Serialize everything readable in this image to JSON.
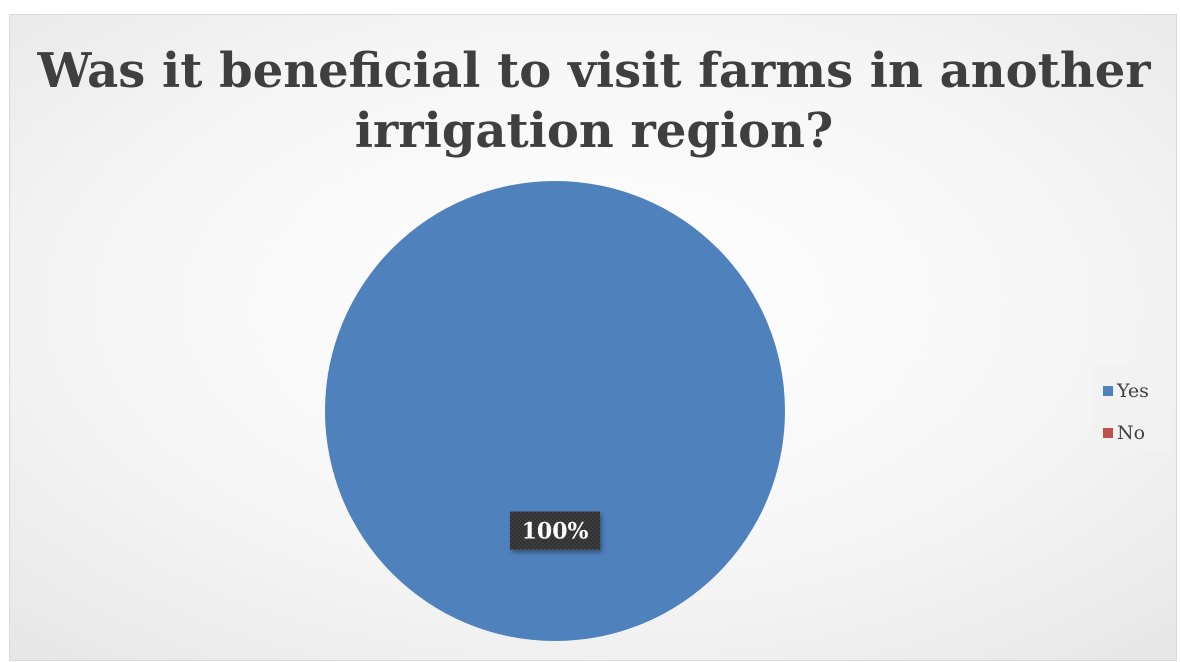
{
  "chart_data": {
    "type": "pie",
    "title": "Was it beneficial to visit farms in another irrigation region?",
    "categories": [
      "Yes",
      "No"
    ],
    "values": [
      100,
      0
    ],
    "colors": [
      "#4f81bd",
      "#c0504d"
    ],
    "data_labels": [
      "100%",
      ""
    ],
    "legend_position": "right"
  }
}
